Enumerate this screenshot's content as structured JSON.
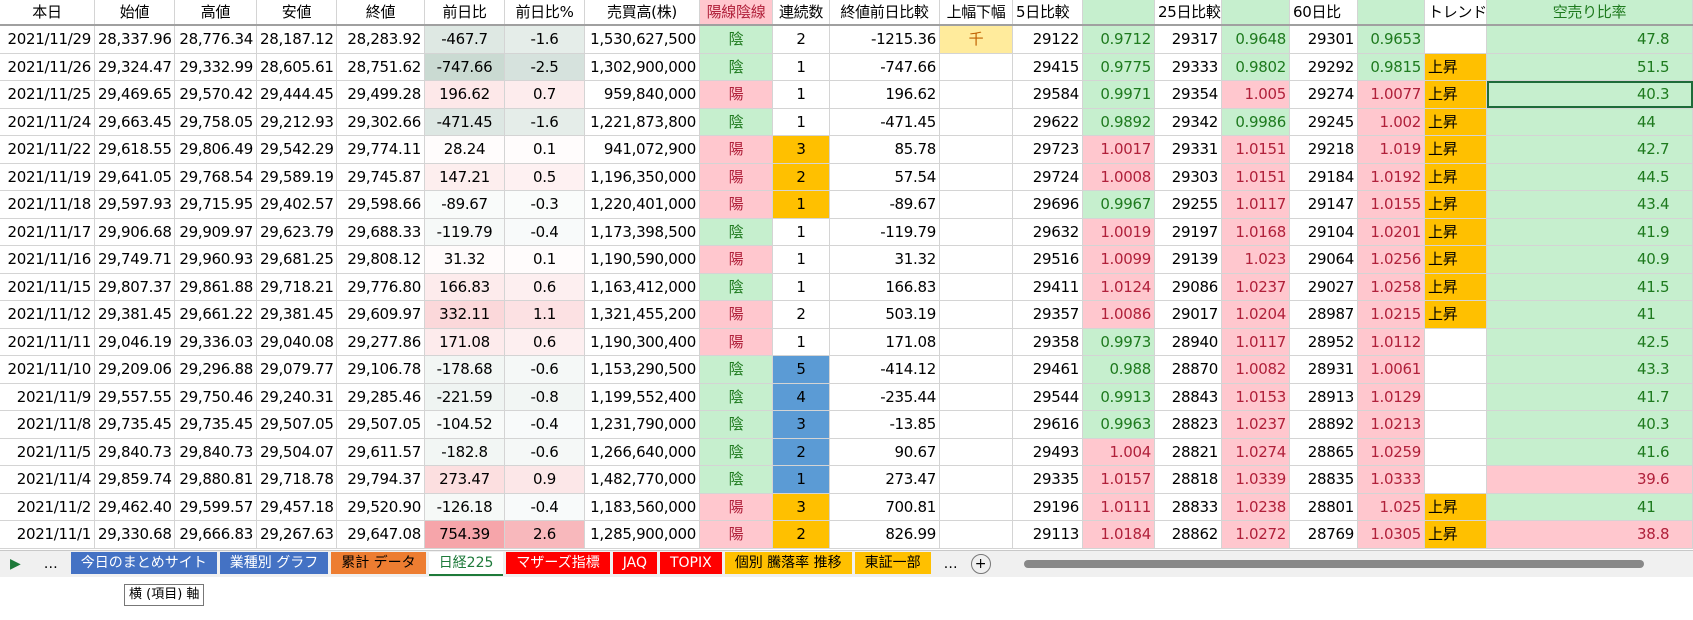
{
  "headers": [
    "本日",
    "始値",
    "高値",
    "安値",
    "終値",
    "前日比",
    "前日比%",
    "売買高(株)",
    "陽線陰線",
    "連続数",
    "終値前日比較",
    "上幅下幅",
    "5日比較",
    "",
    "25日比較",
    "",
    "60日比",
    "",
    "トレンド",
    "空売り比率"
  ],
  "rows": [
    [
      "2021/11/29",
      "28,337.96",
      "28,776.34",
      "28,187.12",
      "28,283.92",
      "-467.7",
      "-1.6",
      "1,530,627,500",
      "陰",
      "2",
      "-1215.36",
      "千",
      "29122",
      "0.9712",
      "29317",
      "0.9648",
      "29301",
      "0.9653",
      "",
      "47.8"
    ],
    [
      "2021/11/26",
      "29,324.47",
      "29,332.99",
      "28,605.61",
      "28,751.62",
      "-747.66",
      "-2.5",
      "1,302,900,000",
      "陰",
      "1",
      "-747.66",
      "",
      "29415",
      "0.9775",
      "29333",
      "0.9802",
      "29292",
      "0.9815",
      "上昇",
      "51.5"
    ],
    [
      "2021/11/25",
      "29,469.65",
      "29,570.42",
      "29,444.45",
      "29,499.28",
      "196.62",
      "0.7",
      "959,840,000",
      "陽",
      "1",
      "196.62",
      "",
      "29584",
      "0.9971",
      "29354",
      "1.005",
      "29274",
      "1.0077",
      "上昇",
      "40.3"
    ],
    [
      "2021/11/24",
      "29,663.45",
      "29,758.05",
      "29,212.93",
      "29,302.66",
      "-471.45",
      "-1.6",
      "1,221,873,800",
      "陰",
      "1",
      "-471.45",
      "",
      "29622",
      "0.9892",
      "29342",
      "0.9986",
      "29245",
      "1.002",
      "上昇",
      "44"
    ],
    [
      "2021/11/22",
      "29,618.55",
      "29,806.49",
      "29,542.29",
      "29,774.11",
      "28.24",
      "0.1",
      "941,072,900",
      "陽",
      "3",
      "85.78",
      "",
      "29723",
      "1.0017",
      "29331",
      "1.0151",
      "29218",
      "1.019",
      "上昇",
      "42.7"
    ],
    [
      "2021/11/19",
      "29,641.05",
      "29,768.54",
      "29,589.19",
      "29,745.87",
      "147.21",
      "0.5",
      "1,196,350,000",
      "陽",
      "2",
      "57.54",
      "",
      "29724",
      "1.0008",
      "29303",
      "1.0151",
      "29184",
      "1.0192",
      "上昇",
      "44.5"
    ],
    [
      "2021/11/18",
      "29,597.93",
      "29,715.95",
      "29,402.57",
      "29,598.66",
      "-89.67",
      "-0.3",
      "1,220,401,000",
      "陽",
      "1",
      "-89.67",
      "",
      "29696",
      "0.9967",
      "29255",
      "1.0117",
      "29147",
      "1.0155",
      "上昇",
      "43.4"
    ],
    [
      "2021/11/17",
      "29,906.68",
      "29,909.97",
      "29,623.79",
      "29,688.33",
      "-119.79",
      "-0.4",
      "1,173,398,500",
      "陰",
      "1",
      "-119.79",
      "",
      "29632",
      "1.0019",
      "29197",
      "1.0168",
      "29104",
      "1.0201",
      "上昇",
      "41.9"
    ],
    [
      "2021/11/16",
      "29,749.71",
      "29,960.93",
      "29,681.25",
      "29,808.12",
      "31.32",
      "0.1",
      "1,190,590,000",
      "陽",
      "1",
      "31.32",
      "",
      "29516",
      "1.0099",
      "29139",
      "1.023",
      "29064",
      "1.0256",
      "上昇",
      "40.9"
    ],
    [
      "2021/11/15",
      "29,807.37",
      "29,861.88",
      "29,718.21",
      "29,776.80",
      "166.83",
      "0.6",
      "1,163,412,000",
      "陰",
      "1",
      "166.83",
      "",
      "29411",
      "1.0124",
      "29086",
      "1.0237",
      "29027",
      "1.0258",
      "上昇",
      "41.5"
    ],
    [
      "2021/11/12",
      "29,381.45",
      "29,661.22",
      "29,381.45",
      "29,609.97",
      "332.11",
      "1.1",
      "1,321,455,200",
      "陽",
      "2",
      "503.19",
      "",
      "29357",
      "1.0086",
      "29017",
      "1.0204",
      "28987",
      "1.0215",
      "上昇",
      "41"
    ],
    [
      "2021/11/11",
      "29,046.19",
      "29,336.03",
      "29,040.08",
      "29,277.86",
      "171.08",
      "0.6",
      "1,190,300,400",
      "陽",
      "1",
      "171.08",
      "",
      "29358",
      "0.9973",
      "28940",
      "1.0117",
      "28952",
      "1.0112",
      "",
      "42.5"
    ],
    [
      "2021/11/10",
      "29,209.06",
      "29,296.88",
      "29,079.77",
      "29,106.78",
      "-178.68",
      "-0.6",
      "1,153,290,500",
      "陰",
      "5",
      "-414.12",
      "",
      "29461",
      "0.988",
      "28870",
      "1.0082",
      "28931",
      "1.0061",
      "",
      "43.3"
    ],
    [
      "2021/11/9",
      "29,557.55",
      "29,750.46",
      "29,240.31",
      "29,285.46",
      "-221.59",
      "-0.8",
      "1,199,552,400",
      "陰",
      "4",
      "-235.44",
      "",
      "29544",
      "0.9913",
      "28843",
      "1.0153",
      "28913",
      "1.0129",
      "",
      "41.7"
    ],
    [
      "2021/11/8",
      "29,735.45",
      "29,735.45",
      "29,507.05",
      "29,507.05",
      "-104.52",
      "-0.4",
      "1,231,790,000",
      "陰",
      "3",
      "-13.85",
      "",
      "29616",
      "0.9963",
      "28823",
      "1.0237",
      "28892",
      "1.0213",
      "",
      "40.3"
    ],
    [
      "2021/11/5",
      "29,840.73",
      "29,840.73",
      "29,504.07",
      "29,611.57",
      "-182.8",
      "-0.6",
      "1,266,640,000",
      "陰",
      "2",
      "90.67",
      "",
      "29493",
      "1.004",
      "28821",
      "1.0274",
      "28865",
      "1.0259",
      "",
      "41.6"
    ],
    [
      "2021/11/4",
      "29,859.74",
      "29,880.81",
      "29,718.78",
      "29,794.37",
      "273.47",
      "0.9",
      "1,482,770,000",
      "陰",
      "1",
      "273.47",
      "",
      "29335",
      "1.0157",
      "28818",
      "1.0339",
      "28835",
      "1.0333",
      "",
      "39.6"
    ],
    [
      "2021/11/2",
      "29,462.40",
      "29,599.57",
      "29,457.18",
      "29,520.90",
      "-126.18",
      "-0.4",
      "1,183,560,000",
      "陽",
      "3",
      "700.81",
      "",
      "29196",
      "1.0111",
      "28833",
      "1.0238",
      "28801",
      "1.025",
      "上昇",
      "41"
    ],
    [
      "2021/11/1",
      "29,330.68",
      "29,666.83",
      "29,267.63",
      "29,647.08",
      "754.39",
      "2.6",
      "1,285,900,000",
      "陽",
      "2",
      "826.99",
      "",
      "29113",
      "1.0184",
      "28862",
      "1.0272",
      "28769",
      "1.0305",
      "上昇",
      "38.8"
    ]
  ],
  "streak_colors": [
    "",
    "",
    "",
    "",
    "orange",
    "orange",
    "orange",
    "",
    "",
    "",
    "",
    "",
    "blue",
    "blue",
    "blue",
    "blue",
    "blue",
    "orange",
    "orange"
  ],
  "tooltip": "横 (項目) 軸",
  "tabs": [
    {
      "label": "今日のまとめサイト",
      "bg": "#4472c4",
      "fg": "#fff"
    },
    {
      "label": "業種別 グラフ",
      "bg": "#4472c4",
      "fg": "#fff"
    },
    {
      "label": "累計 データ",
      "bg": "#ed7d31",
      "fg": "#000"
    },
    {
      "label": "日経225",
      "bg": "#fff",
      "fg": "#1e7a3a"
    },
    {
      "label": "マザーズ指標",
      "bg": "#ff0000",
      "fg": "#fff"
    },
    {
      "label": "JAQ",
      "bg": "#ff0000",
      "fg": "#fff"
    },
    {
      "label": "TOPIX",
      "bg": "#ff0000",
      "fg": "#fff"
    },
    {
      "label": "個別 騰落率 推移",
      "bg": "#ffc000",
      "fg": "#000"
    },
    {
      "label": "東証一部",
      "bg": "#ffc000",
      "fg": "#000"
    }
  ],
  "colors": {
    "green": "#c6efce",
    "pink": "#ffc7ce",
    "orange": "#ffc000",
    "blue": "#5b9bd5",
    "yellow": "#ffeb9c"
  }
}
